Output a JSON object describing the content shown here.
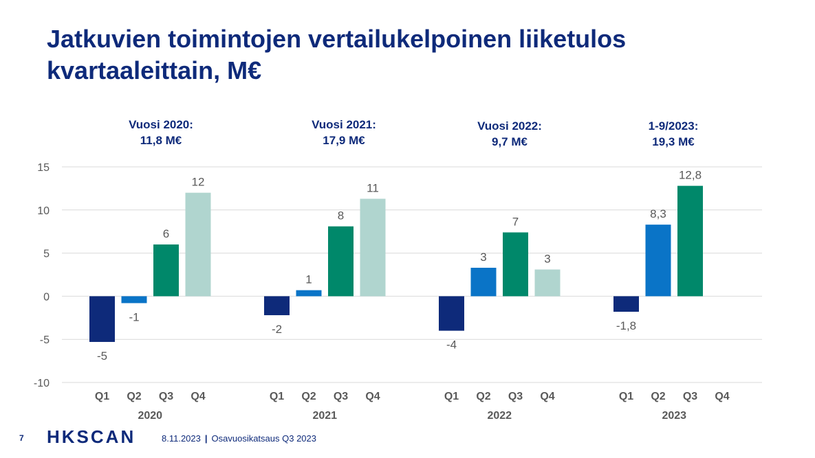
{
  "title": {
    "line1": "Jatkuvien toimintojen vertailukelpoinen liiketulos",
    "line2": "kvartaaleittain, M€"
  },
  "year_notes": [
    {
      "line1": "Vuosi 2020:",
      "line2": "11,8 M€"
    },
    {
      "line1": "Vuosi 2021:",
      "line2": "17,9 M€"
    },
    {
      "line1": "Vuosi 2022:",
      "line2": "9,7 M€"
    },
    {
      "line1": "1-9/2023:",
      "line2": "19,3 M€"
    }
  ],
  "chart_data": {
    "type": "bar",
    "ylim": [
      -10,
      15
    ],
    "yticks": [
      -10,
      -5,
      0,
      5,
      10,
      15
    ],
    "grid": true,
    "groups": [
      "2020",
      "2021",
      "2022",
      "2023"
    ],
    "quarters": [
      "Q1",
      "Q2",
      "Q3",
      "Q4"
    ],
    "quarter_colors": [
      "#0e2a7a",
      "#0a74c7",
      "#00886a",
      "#b0d5cf"
    ],
    "values": [
      [
        -5.3,
        -0.8,
        6.0,
        12.0
      ],
      [
        -2.2,
        0.7,
        8.1,
        11.3
      ],
      [
        -4.0,
        3.3,
        7.4,
        3.1
      ],
      [
        -1.8,
        8.3,
        12.8,
        null
      ]
    ],
    "labels": [
      [
        "-5",
        "-1",
        "6",
        "12"
      ],
      [
        "-2",
        "1",
        "8",
        "11"
      ],
      [
        "-4",
        "3",
        "7",
        "3"
      ],
      [
        "-1,8",
        "8,3",
        "12,8",
        ""
      ]
    ]
  },
  "footer": {
    "page": "7",
    "logo": "HKSCAN",
    "date": "8.11.2023",
    "separator": "|",
    "text": "Osavuosikatsaus Q3 2023"
  }
}
